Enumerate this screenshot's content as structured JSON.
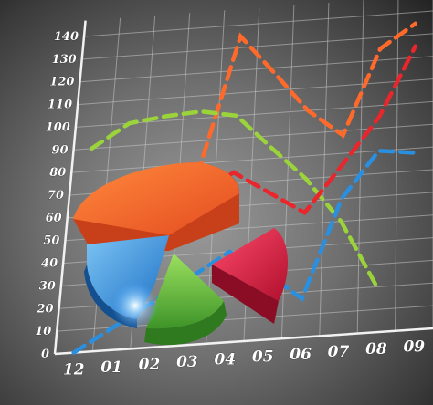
{
  "chart_data": {
    "type": "line",
    "style": "3d-perspective-stock-illustration",
    "y_ticks": [
      "0",
      "10",
      "20",
      "30",
      "40",
      "50",
      "60",
      "70",
      "80",
      "90",
      "100",
      "110",
      "120",
      "130",
      "140"
    ],
    "x_ticks": [
      "12",
      "01",
      "02",
      "03",
      "04",
      "05",
      "06",
      "07",
      "08",
      "09"
    ],
    "ylim": [
      0,
      140
    ],
    "grid": true,
    "series": [
      {
        "color": "#ff6a2b",
        "values": [
          null,
          null,
          null,
          75,
          135,
          118,
          100,
          88,
          125,
          135
        ]
      },
      {
        "color": "#9ad43a",
        "values": [
          90,
          100,
          102,
          103,
          100,
          85,
          70,
          50,
          20,
          null
        ]
      },
      {
        "color": "#2b8fe0",
        "values": [
          0,
          10,
          20,
          30,
          40,
          30,
          17,
          60,
          80,
          78
        ]
      },
      {
        "color": "#e8262b",
        "values": [
          null,
          40,
          55,
          65,
          75,
          65,
          55,
          75,
          95,
          125
        ]
      }
    ],
    "pie_colors": [
      "#f2592a",
      "#2f86d8",
      "#6dbd3f",
      "#e0204a"
    ]
  }
}
